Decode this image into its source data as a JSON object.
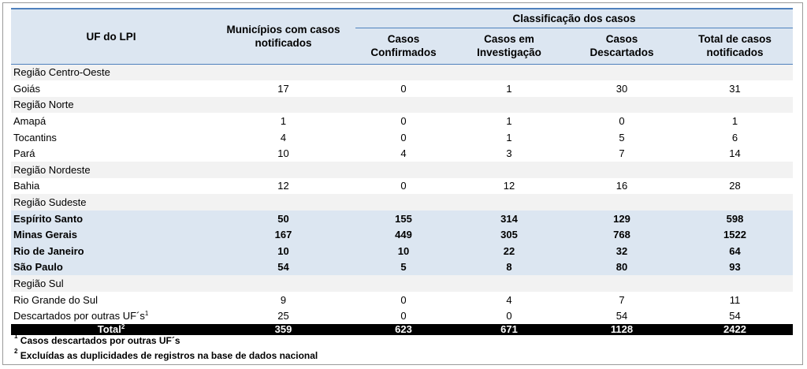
{
  "header": {
    "uf": "UF do LPI",
    "municipios_line1": "Municípios com casos",
    "municipios_line2": "notificados",
    "classificacao": "Classificação dos casos",
    "confirmados_line1": "Casos",
    "confirmados_line2": "Confirmados",
    "investigacao_line1": "Casos em",
    "investigacao_line2": "Investigação",
    "descartados_line1": "Casos",
    "descartados_line2": "Descartados",
    "total_line1": "Total de casos",
    "total_line2": "notificados"
  },
  "regions": {
    "centro_oeste": "Região Centro-Oeste",
    "norte": "Região Norte",
    "nordeste": "Região Nordeste",
    "sudeste": "Região Sudeste",
    "sul": "Região Sul"
  },
  "rows": {
    "goias": {
      "name": "Goiás",
      "mun": "17",
      "conf": "0",
      "inv": "1",
      "desc": "30",
      "tot": "31"
    },
    "amapa": {
      "name": "Amapá",
      "mun": "1",
      "conf": "0",
      "inv": "1",
      "desc": "0",
      "tot": "1"
    },
    "tocantins": {
      "name": "Tocantins",
      "mun": "4",
      "conf": "0",
      "inv": "1",
      "desc": "5",
      "tot": "6"
    },
    "para": {
      "name": "Pará",
      "mun": "10",
      "conf": "4",
      "inv": "3",
      "desc": "7",
      "tot": "14"
    },
    "bahia": {
      "name": "Bahia",
      "mun": "12",
      "conf": "0",
      "inv": "12",
      "desc": "16",
      "tot": "28"
    },
    "es": {
      "name": "Espírito Santo",
      "mun": "50",
      "conf": "155",
      "inv": "314",
      "desc": "129",
      "tot": "598"
    },
    "mg": {
      "name": "Minas Gerais",
      "mun": "167",
      "conf": "449",
      "inv": "305",
      "desc": "768",
      "tot": "1522"
    },
    "rj": {
      "name": "Rio de Janeiro",
      "mun": "10",
      "conf": "10",
      "inv": "22",
      "desc": "32",
      "tot": "64"
    },
    "sp": {
      "name": "São Paulo",
      "mun": "54",
      "conf": "5",
      "inv": "8",
      "desc": "80",
      "tot": "93"
    },
    "rs": {
      "name": "Rio Grande do Sul",
      "mun": "9",
      "conf": "0",
      "inv": "4",
      "desc": "7",
      "tot": "11"
    },
    "outras": {
      "name": "Descartados por outras UF´s",
      "sup": "1",
      "mun": "25",
      "conf": "0",
      "inv": "0",
      "desc": "54",
      "tot": "54"
    }
  },
  "total": {
    "name": "Total",
    "sup": "2",
    "mun": "359",
    "conf": "623",
    "inv": "671",
    "desc": "1128",
    "tot": "2422"
  },
  "footnotes": {
    "n1_mark": "1",
    "n1_text": "Casos descartados por outras UF´s",
    "n2_mark": "2",
    "n2_text": "Excluídas as duplicidades de registros na base de dados nacional"
  }
}
